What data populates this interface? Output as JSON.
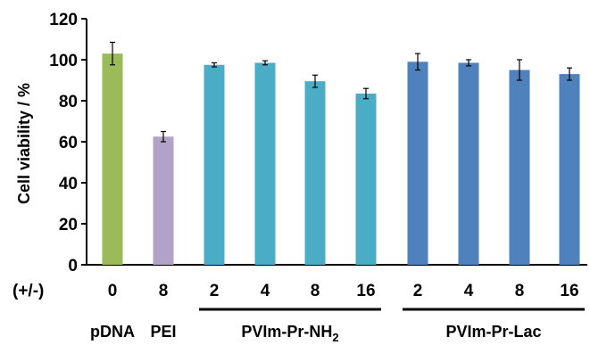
{
  "chart_data": {
    "type": "bar",
    "ylabel": "Cell viability / %",
    "ylim": [
      0,
      120
    ],
    "yticks": [
      0,
      20,
      40,
      60,
      80,
      100,
      120
    ],
    "ratio_label": "(+/-)",
    "categories": [
      "0",
      "8",
      "2",
      "4",
      "8",
      "16",
      "2",
      "4",
      "8",
      "16"
    ],
    "values": [
      103,
      62.5,
      97.5,
      98.5,
      89.5,
      83.5,
      99,
      98.5,
      95,
      93
    ],
    "errors": [
      5.5,
      2.5,
      1,
      1,
      3,
      2.5,
      4,
      1.5,
      5,
      3
    ],
    "colors": [
      "#9bbb59",
      "#b3a2c7",
      "#4bacc6",
      "#4bacc6",
      "#4bacc6",
      "#4bacc6",
      "#4f81bd",
      "#4f81bd",
      "#4f81bd",
      "#4f81bd"
    ],
    "groups": [
      {
        "name": "pDNA",
        "indices": [
          0
        ],
        "underline": false
      },
      {
        "name": "PEI",
        "indices": [
          1
        ],
        "underline": false
      },
      {
        "name": "PVIm-Pr-NH",
        "subscript": "2",
        "indices": [
          2,
          3,
          4,
          5
        ],
        "underline": true
      },
      {
        "name": "PVIm-Pr-Lac",
        "indices": [
          6,
          7,
          8,
          9
        ],
        "underline": true
      }
    ],
    "grid": false,
    "legend": "none"
  }
}
